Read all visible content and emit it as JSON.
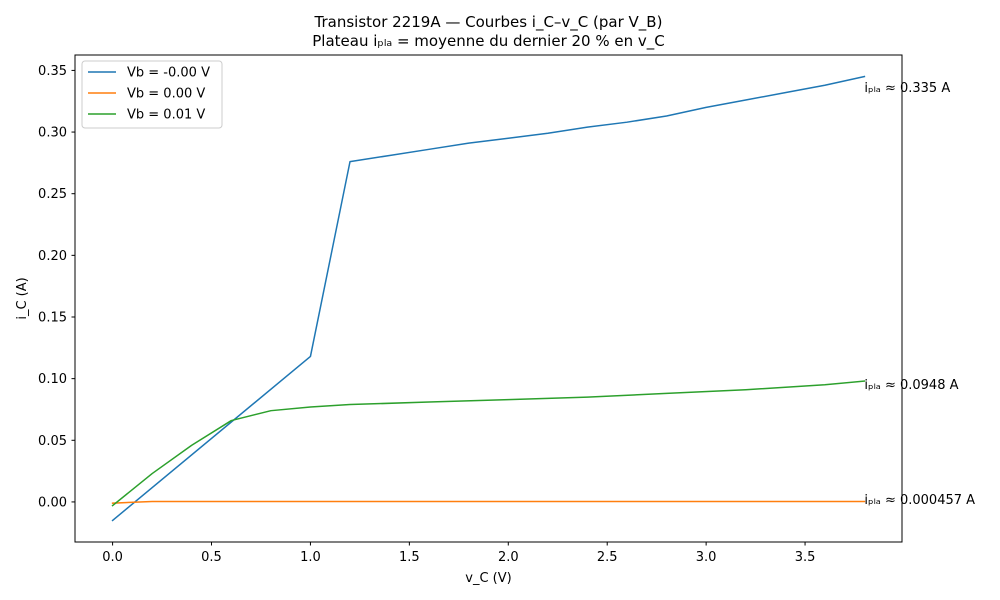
{
  "chart_data": {
    "type": "line",
    "title": "Transistor 2219A — Courbes i_C–v_C (par V_B)",
    "subtitle": "Plateau iₚₗₐ = moyenne du dernier 20 % en v_C",
    "xlabel": "v_C (V)",
    "ylabel": "i_C (A)",
    "xlim": [
      -0.19,
      3.99
    ],
    "ylim": [
      -0.0325,
      0.3625
    ],
    "xticks": [
      0.0,
      0.5,
      1.0,
      1.5,
      2.0,
      2.5,
      3.0,
      3.5
    ],
    "xtick_labels": [
      "0.0",
      "0.5",
      "1.0",
      "1.5",
      "2.0",
      "2.5",
      "3.0",
      "3.5"
    ],
    "yticks": [
      0.0,
      0.05,
      0.1,
      0.15,
      0.2,
      0.25,
      0.3,
      0.35
    ],
    "ytick_labels": [
      "0.00",
      "0.05",
      "0.10",
      "0.15",
      "0.20",
      "0.25",
      "0.30",
      "0.35"
    ],
    "grid": false,
    "legend_position": "top-left",
    "series": [
      {
        "name": "Vb = -0.00 V",
        "color": "#1f77b4",
        "x": [
          0.0,
          1.0,
          1.2,
          1.4,
          1.6,
          1.8,
          2.0,
          2.2,
          2.4,
          2.6,
          2.8,
          3.0,
          3.2,
          3.4,
          3.6,
          3.8
        ],
        "y": [
          -0.015,
          0.118,
          0.276,
          0.281,
          0.286,
          0.291,
          0.295,
          0.299,
          0.304,
          0.308,
          0.313,
          0.32,
          0.326,
          0.332,
          0.338,
          0.345
        ]
      },
      {
        "name": "Vb = 0.00 V",
        "color": "#ff7f0e",
        "x": [
          0.0,
          0.2,
          3.8
        ],
        "y": [
          -0.001,
          0.0004,
          0.0004
        ]
      },
      {
        "name": "Vb = 0.01 V",
        "color": "#2ca02c",
        "x": [
          0.0,
          0.2,
          0.4,
          0.6,
          0.8,
          1.0,
          1.2,
          1.6,
          2.0,
          2.4,
          2.8,
          3.2,
          3.6,
          3.8
        ],
        "y": [
          -0.003,
          0.023,
          0.046,
          0.066,
          0.074,
          0.077,
          0.079,
          0.081,
          0.083,
          0.085,
          0.088,
          0.091,
          0.095,
          0.098
        ]
      }
    ],
    "annotations": [
      {
        "text": "iₚₗₐ ≈ 0.335 A",
        "x": 3.8,
        "y": 0.3365
      },
      {
        "text": "iₚₗₐ ≈ 0.0948 A",
        "x": 3.8,
        "y": 0.0957
      },
      {
        "text": "iₚₗₐ ≈ 0.000457 A",
        "x": 3.8,
        "y": 0.0025
      }
    ]
  }
}
